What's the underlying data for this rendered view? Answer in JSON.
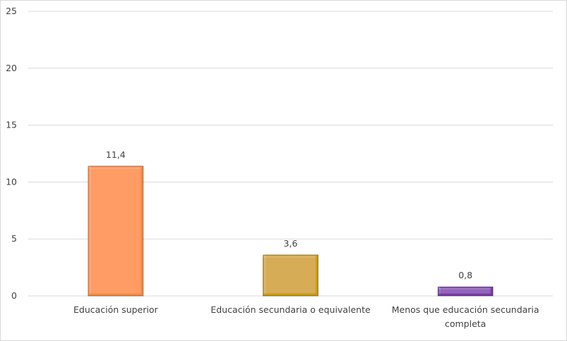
{
  "chart_data": {
    "type": "bar",
    "title": "",
    "xlabel": "",
    "ylabel": "",
    "categories": [
      "Educación superior",
      "Educación secundaria o equivalente",
      "Menos que educación secundaria completa"
    ],
    "category_lines": [
      [
        "Educación superior"
      ],
      [
        "Educación secundaria o equivalente"
      ],
      [
        "Menos que educación secundaria",
        "completa"
      ]
    ],
    "values": [
      11.4,
      3.6,
      0.8
    ],
    "data_labels": [
      "11,4",
      "3,6",
      "0,8"
    ],
    "colors": [
      "#f5873a",
      "#c99a00",
      "#7a35a8"
    ],
    "ylim": [
      0,
      25
    ],
    "yticks": [
      0,
      5,
      10,
      15,
      20,
      25
    ],
    "ytick_labels": [
      "0",
      "5",
      "10",
      "15",
      "20",
      "25"
    ],
    "grid": true,
    "legend": "none"
  }
}
